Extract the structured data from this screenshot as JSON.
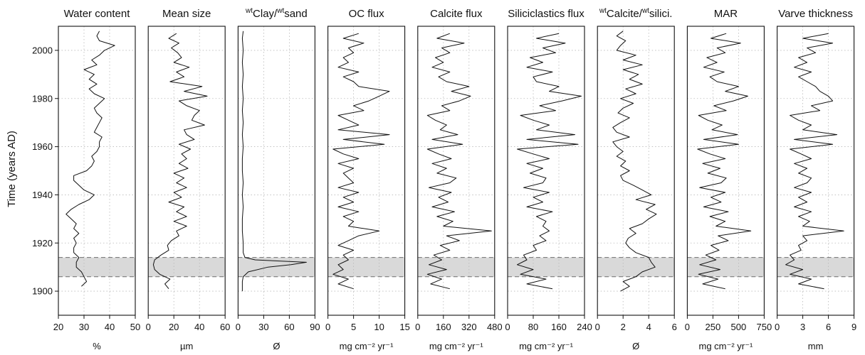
{
  "chart_data": {
    "type": "line",
    "ylabel": "Time (years AD)",
    "ylim": [
      1890,
      2010
    ],
    "yticks": [
      1900,
      1920,
      1940,
      1960,
      1980,
      2000
    ],
    "grid": true,
    "shaded_band": {
      "from": 1906,
      "to": 1914,
      "color": "#d9d9d9"
    },
    "panels": [
      {
        "title": "Water content",
        "sup1": "",
        "mid": "",
        "sup2": "",
        "tail": "",
        "unit": "%",
        "xlim": [
          20,
          50
        ],
        "xticks": [
          20,
          30,
          40,
          50
        ],
        "y": [
          1902,
          1904,
          1906,
          1908,
          1910,
          1912,
          1914,
          1916,
          1918,
          1920,
          1922,
          1924,
          1926,
          1928,
          1930,
          1932,
          1934,
          1936,
          1938,
          1940,
          1942,
          1944,
          1946,
          1948,
          1950,
          1952,
          1954,
          1956,
          1958,
          1960,
          1962,
          1964,
          1966,
          1968,
          1970,
          1972,
          1974,
          1976,
          1978,
          1980,
          1982,
          1984,
          1986,
          1988,
          1990,
          1992,
          1994,
          1996,
          1998,
          2000,
          2002,
          2004,
          2006,
          2008
        ],
        "x": [
          29,
          31,
          30,
          29,
          27,
          27,
          28,
          26,
          26,
          27,
          26,
          28,
          26,
          27,
          25,
          23,
          25,
          28,
          32,
          34,
          30,
          28,
          26,
          26,
          31,
          33,
          34,
          33,
          35,
          36,
          36,
          37,
          34,
          35,
          36,
          37,
          35,
          34,
          36,
          38,
          34,
          32,
          35,
          32,
          34,
          30,
          35,
          33,
          36,
          38,
          42,
          36,
          35,
          36
        ]
      },
      {
        "title": "Mean size",
        "sup1": "",
        "mid": "",
        "sup2": "",
        "tail": "",
        "unit": "µm",
        "xlim": [
          0,
          60
        ],
        "xticks": [
          0,
          20,
          40,
          60
        ],
        "y": [
          1901,
          1903,
          1905,
          1907,
          1909,
          1911,
          1913,
          1915,
          1917,
          1919,
          1921,
          1923,
          1925,
          1927,
          1929,
          1931,
          1933,
          1935,
          1937,
          1939,
          1941,
          1943,
          1945,
          1947,
          1949,
          1951,
          1953,
          1955,
          1957,
          1959,
          1961,
          1963,
          1965,
          1967,
          1969,
          1971,
          1973,
          1975,
          1977,
          1979,
          1981,
          1983,
          1985,
          1987,
          1989,
          1991,
          1993,
          1995,
          1997,
          1999,
          2001,
          2003,
          2005,
          2007
        ],
        "x": [
          16,
          13,
          17,
          9,
          5,
          4,
          5,
          10,
          16,
          15,
          18,
          24,
          22,
          30,
          20,
          30,
          22,
          28,
          16,
          26,
          20,
          30,
          22,
          28,
          20,
          31,
          24,
          30,
          26,
          33,
          24,
          36,
          30,
          28,
          44,
          34,
          36,
          40,
          30,
          24,
          46,
          28,
          42,
          17,
          28,
          22,
          32,
          20,
          26,
          23,
          18,
          24,
          16,
          22
        ]
      },
      {
        "title": "",
        "sup1": "wt",
        "mid": "Clay/",
        "sup2": "wt",
        "tail": "sand",
        "unit": "Ø",
        "xlim": [
          0,
          90
        ],
        "xticks": [
          0,
          30,
          60,
          90
        ],
        "y": [
          1900,
          1902,
          1904,
          1906,
          1908,
          1910,
          1911,
          1912,
          1913,
          1914,
          1916,
          1920,
          1925,
          1930,
          1935,
          1940,
          1945,
          1950,
          1955,
          1960,
          1965,
          1970,
          1975,
          1980,
          1985,
          1990,
          1995,
          2000,
          2005,
          2008
        ],
        "x": [
          5,
          5,
          5,
          6,
          12,
          35,
          62,
          80,
          20,
          8,
          6,
          6,
          5,
          5,
          6,
          5,
          6,
          5,
          5,
          6,
          5,
          6,
          5,
          6,
          5,
          6,
          5,
          6,
          5,
          6
        ]
      },
      {
        "title": "OC flux",
        "sup1": "",
        "mid": "",
        "sup2": "",
        "tail": "",
        "unit": "mg cm⁻² yr⁻¹",
        "xlim": [
          0,
          15
        ],
        "xticks": [
          0,
          5,
          10,
          15
        ],
        "y": [
          1901,
          1903,
          1905,
          1907,
          1909,
          1911,
          1913,
          1915,
          1917,
          1919,
          1921,
          1923,
          1925,
          1927,
          1929,
          1931,
          1933,
          1935,
          1937,
          1939,
          1941,
          1943,
          1945,
          1947,
          1949,
          1951,
          1953,
          1955,
          1957,
          1959,
          1961,
          1963,
          1965,
          1967,
          1969,
          1971,
          1973,
          1975,
          1977,
          1979,
          1981,
          1983,
          1985,
          1987,
          1989,
          1991,
          1993,
          1995,
          1997,
          1999,
          2001,
          2003,
          2005,
          2007
        ],
        "x": [
          5,
          2,
          4,
          1,
          3,
          2,
          4,
          3,
          5,
          2,
          4,
          6,
          10,
          4,
          5,
          3,
          6,
          2,
          5,
          3,
          6,
          2,
          5,
          4,
          3,
          5,
          2,
          6,
          3,
          1,
          11,
          3,
          12,
          2,
          6,
          4,
          2,
          7,
          5,
          8,
          10,
          12,
          6,
          5,
          3,
          6,
          2,
          4,
          3,
          5,
          4,
          7,
          3,
          6
        ]
      },
      {
        "title": "Calcite flux",
        "sup1": "",
        "mid": "",
        "sup2": "",
        "tail": "",
        "unit": "mg cm⁻² yr⁻¹",
        "xlim": [
          0,
          480
        ],
        "xticks": [
          0,
          160,
          320,
          480
        ],
        "y": [
          1901,
          1903,
          1905,
          1907,
          1909,
          1911,
          1913,
          1915,
          1917,
          1919,
          1921,
          1923,
          1925,
          1927,
          1929,
          1931,
          1933,
          1935,
          1937,
          1939,
          1941,
          1943,
          1945,
          1947,
          1949,
          1951,
          1953,
          1955,
          1957,
          1959,
          1961,
          1963,
          1965,
          1967,
          1969,
          1971,
          1973,
          1975,
          1977,
          1979,
          1981,
          1983,
          1985,
          1987,
          1989,
          1991,
          1993,
          1995,
          1997,
          1999,
          2001,
          2003,
          2005,
          2007
        ],
        "x": [
          200,
          80,
          150,
          60,
          180,
          70,
          150,
          100,
          200,
          140,
          260,
          180,
          460,
          160,
          220,
          120,
          230,
          90,
          190,
          130,
          210,
          70,
          200,
          240,
          120,
          180,
          90,
          210,
          130,
          60,
          280,
          90,
          250,
          140,
          180,
          110,
          60,
          200,
          150,
          260,
          330,
          210,
          320,
          180,
          130,
          200,
          90,
          160,
          110,
          200,
          150,
          290,
          120,
          200
        ]
      },
      {
        "title": "Siliciclastics flux",
        "sup1": "",
        "mid": "",
        "sup2": "",
        "tail": "",
        "unit": "mg cm⁻² yr⁻¹",
        "xlim": [
          0,
          240
        ],
        "xticks": [
          0,
          80,
          160,
          240
        ],
        "y": [
          1901,
          1903,
          1905,
          1907,
          1909,
          1911,
          1913,
          1915,
          1917,
          1919,
          1921,
          1923,
          1925,
          1927,
          1929,
          1931,
          1933,
          1935,
          1937,
          1939,
          1941,
          1943,
          1945,
          1947,
          1949,
          1951,
          1953,
          1955,
          1957,
          1959,
          1961,
          1963,
          1965,
          1967,
          1969,
          1971,
          1973,
          1975,
          1977,
          1979,
          1981,
          1983,
          1985,
          1987,
          1989,
          1991,
          1993,
          1995,
          1997,
          1999,
          2001,
          2003,
          2005,
          2007
        ],
        "x": [
          140,
          60,
          120,
          40,
          80,
          30,
          60,
          50,
          90,
          80,
          120,
          100,
          130,
          110,
          120,
          90,
          140,
          60,
          110,
          80,
          130,
          50,
          110,
          120,
          70,
          110,
          60,
          130,
          80,
          30,
          220,
          60,
          210,
          90,
          130,
          80,
          40,
          150,
          100,
          170,
          230,
          130,
          160,
          90,
          80,
          140,
          60,
          110,
          70,
          150,
          110,
          180,
          90,
          160
        ]
      },
      {
        "title": "",
        "sup1": "wt",
        "mid": "Calcite/",
        "sup2": "wt",
        "tail": "silici.",
        "unit": "Ø",
        "xlim": [
          0,
          6
        ],
        "xticks": [
          0,
          2,
          4,
          6
        ],
        "y": [
          1900,
          1902,
          1904,
          1906,
          1908,
          1910,
          1912,
          1914,
          1916,
          1918,
          1920,
          1922,
          1924,
          1926,
          1928,
          1930,
          1932,
          1934,
          1936,
          1938,
          1940,
          1942,
          1944,
          1946,
          1948,
          1950,
          1952,
          1954,
          1956,
          1958,
          1960,
          1962,
          1964,
          1966,
          1968,
          1970,
          1972,
          1974,
          1976,
          1978,
          1980,
          1982,
          1984,
          1986,
          1988,
          1990,
          1992,
          1994,
          1996,
          1998,
          2000,
          2002,
          2004,
          2006,
          2008
        ],
        "x": [
          1.8,
          2.5,
          2.0,
          3.0,
          3.5,
          4.5,
          4.2,
          4.0,
          3.0,
          2.5,
          2.2,
          2.4,
          3.0,
          2.5,
          3.5,
          4.0,
          4.6,
          3.8,
          4.5,
          3.0,
          4.2,
          3.5,
          2.8,
          2.0,
          1.8,
          2.5,
          1.8,
          2.2,
          1.5,
          2.0,
          1.5,
          1.2,
          2.5,
          1.5,
          1.2,
          1.8,
          2.5,
          1.6,
          2.0,
          2.8,
          1.8,
          3.0,
          2.2,
          3.5,
          2.5,
          3.2,
          2.0,
          3.5,
          2.0,
          3.0,
          1.5,
          1.8,
          2.2,
          1.5,
          2.0
        ]
      },
      {
        "title": "MAR",
        "sup1": "",
        "mid": "",
        "sup2": "",
        "tail": "",
        "unit": "mg cm⁻² yr⁻¹",
        "xlim": [
          0,
          750
        ],
        "xticks": [
          0,
          250,
          500,
          750
        ],
        "y": [
          1901,
          1903,
          1905,
          1907,
          1909,
          1911,
          1913,
          1915,
          1917,
          1919,
          1921,
          1923,
          1925,
          1927,
          1929,
          1931,
          1933,
          1935,
          1937,
          1939,
          1941,
          1943,
          1945,
          1947,
          1949,
          1951,
          1953,
          1955,
          1957,
          1959,
          1961,
          1963,
          1965,
          1967,
          1969,
          1971,
          1973,
          1975,
          1977,
          1979,
          1981,
          1983,
          1985,
          1987,
          1989,
          1991,
          1993,
          1995,
          1997,
          1999,
          2001,
          2003,
          2005,
          2007
        ],
        "x": [
          370,
          150,
          300,
          110,
          320,
          120,
          280,
          180,
          310,
          230,
          400,
          300,
          620,
          280,
          370,
          220,
          400,
          160,
          330,
          230,
          370,
          120,
          330,
          380,
          200,
          320,
          150,
          370,
          220,
          100,
          500,
          160,
          490,
          240,
          340,
          200,
          110,
          380,
          260,
          450,
          590,
          370,
          500,
          290,
          220,
          360,
          160,
          290,
          190,
          370,
          290,
          520,
          230,
          380
        ]
      },
      {
        "title": "Varve thickness",
        "sup1": "",
        "mid": "",
        "sup2": "",
        "tail": "",
        "unit": "mm",
        "xlim": [
          0,
          9
        ],
        "xticks": [
          0,
          3,
          6,
          9
        ],
        "y": [
          1901,
          1903,
          1905,
          1907,
          1909,
          1911,
          1913,
          1915,
          1917,
          1919,
          1921,
          1923,
          1925,
          1927,
          1929,
          1931,
          1933,
          1935,
          1937,
          1939,
          1941,
          1943,
          1945,
          1947,
          1949,
          1951,
          1953,
          1955,
          1957,
          1959,
          1961,
          1963,
          1965,
          1967,
          1969,
          1971,
          1973,
          1975,
          1977,
          1979,
          1981,
          1983,
          1985,
          1987,
          1989,
          1991,
          1993,
          1995,
          1997,
          1999,
          2001,
          2003,
          2005,
          2007
        ],
        "x": [
          5.5,
          2.5,
          4.0,
          1.5,
          3.0,
          1.0,
          2.0,
          1.5,
          2.8,
          2.5,
          3.5,
          3.0,
          7.8,
          3.0,
          3.8,
          2.5,
          4.0,
          2.0,
          3.5,
          2.5,
          4.0,
          2.0,
          3.5,
          4.0,
          2.5,
          3.5,
          2.0,
          4.0,
          2.8,
          1.5,
          6.5,
          2.0,
          7.0,
          3.0,
          4.0,
          2.5,
          1.5,
          5.0,
          4.0,
          6.5,
          6.0,
          5.0,
          4.5,
          3.5,
          2.5,
          4.0,
          2.0,
          3.5,
          2.5,
          4.5,
          3.5,
          6.5,
          3.0,
          6.0
        ]
      }
    ]
  }
}
